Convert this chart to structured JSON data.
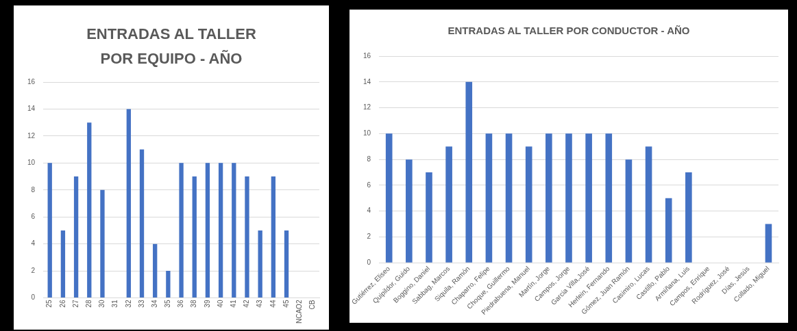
{
  "chart_data": [
    {
      "type": "bar",
      "title": "ENTRADAS AL TALLER POR EQUIPO - AÑO",
      "categories": [
        "25",
        "26",
        "27",
        "28",
        "30",
        "31",
        "32",
        "33",
        "34",
        "35",
        "36",
        "38",
        "39",
        "40",
        "41",
        "42",
        "43",
        "44",
        "45",
        "NCAO2",
        "CB"
      ],
      "values": [
        10,
        5,
        9,
        13,
        8,
        0,
        14,
        11,
        4,
        2,
        10,
        9,
        10,
        10,
        10,
        9,
        5,
        9,
        5,
        0,
        0
      ],
      "color": "#4472c4",
      "ylim": [
        0,
        16
      ],
      "yticks": [
        0,
        2,
        4,
        6,
        8,
        10,
        12,
        14,
        16
      ],
      "grid": "y",
      "legend": false
    },
    {
      "type": "bar",
      "title": "ENTRADAS AL TALLER POR CONDUCTOR - AÑO",
      "categories": [
        "Gutiérrez, Eliseo",
        "Quipildor, Guido",
        "Boggino, Daniel",
        "Sabbag, Marcos",
        "Siquila, Ramón",
        "Chaparro, Felipe",
        "Choque, Guillermo",
        "Piedrabuena, Manuel",
        "Martín, Jorge",
        "Campos, Jorge",
        "Garcia Villa,José",
        "Herlein, Fernando",
        "Gómez, Juan Ramón",
        "Casimiro, Lucas",
        "Castillo, Pablo",
        "Armiñana, Luis",
        "Campos, Enrique",
        "Rodríguez, José",
        "Días, Jesús",
        "Collado, Miguel"
      ],
      "values": [
        10,
        8,
        7,
        9,
        14,
        10,
        10,
        9,
        10,
        10,
        10,
        10,
        8,
        9,
        5,
        7,
        0,
        0,
        0,
        3
      ],
      "color": "#4472c4",
      "ylim": [
        0,
        16
      ],
      "yticks": [
        0,
        2,
        4,
        6,
        8,
        10,
        12,
        14,
        16
      ],
      "grid": "y",
      "legend": false
    }
  ]
}
